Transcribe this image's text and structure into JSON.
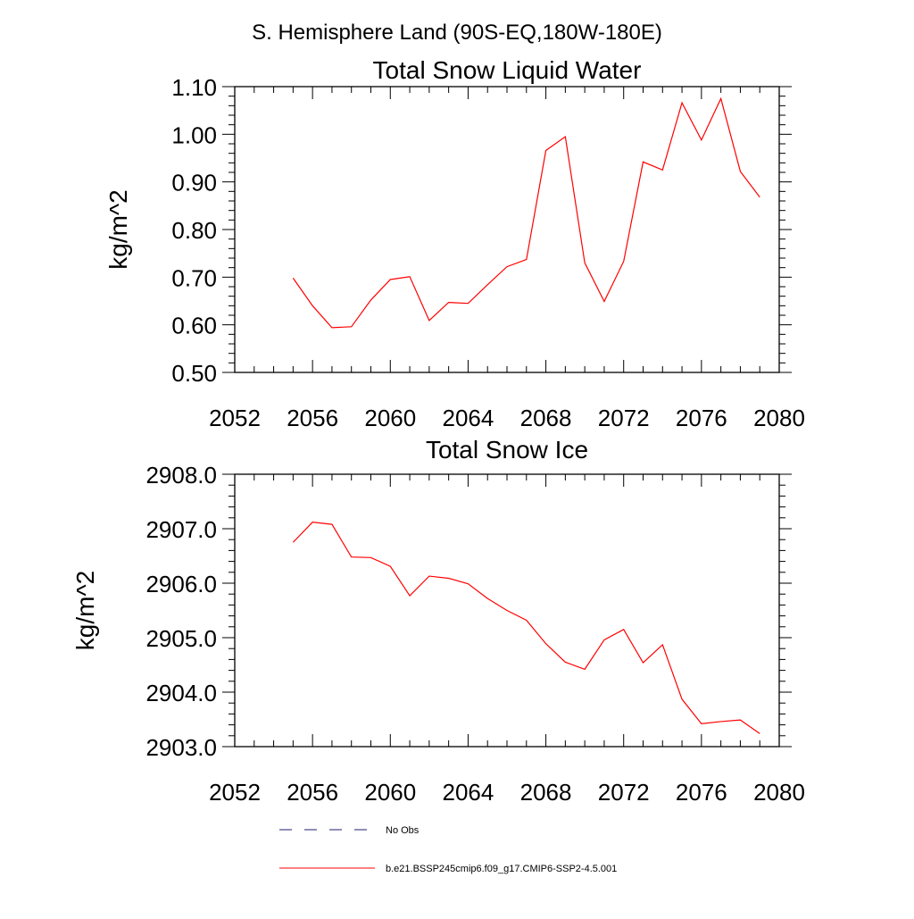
{
  "page_title": "S. Hemisphere Land (90S-EQ,180W-180E)",
  "colors": {
    "series": "#ff0000",
    "obs": "#1c1c6e",
    "axis": "#000000"
  },
  "legend": [
    {
      "name": "No Obs",
      "style": "dashed",
      "color": "#1c1c6e"
    },
    {
      "name": "b.e21.BSSP245cmip6.f09_g17.CMIP6-SSP2-4.5.001",
      "style": "solid",
      "color": "#ff0000"
    }
  ],
  "chart_data": [
    {
      "type": "line",
      "title": "Total Snow Liquid Water",
      "xlabel": "",
      "ylabel": "kg/m^2",
      "xlim": [
        2052,
        2080
      ],
      "ylim": [
        0.5,
        1.1
      ],
      "xticks": [
        2052,
        2056,
        2060,
        2064,
        2068,
        2072,
        2076,
        2080
      ],
      "xtick_labels": [
        "2052",
        "2056",
        "2060",
        "2064",
        "2068",
        "2072",
        "2076",
        "2080"
      ],
      "yticks": [
        0.5,
        0.6,
        0.7,
        0.8,
        0.9,
        1.0,
        1.1
      ],
      "ytick_labels": [
        "0.50",
        "0.60",
        "0.70",
        "0.80",
        "0.90",
        "1.00",
        "1.10"
      ],
      "grid": false,
      "series": [
        {
          "name": "b.e21.BSSP245cmip6.f09_g17.CMIP6-SSP2-4.5.001",
          "x": [
            2055,
            2056,
            2057,
            2058,
            2059,
            2060,
            2061,
            2062,
            2063,
            2064,
            2065,
            2066,
            2067,
            2068,
            2069,
            2070,
            2071,
            2072,
            2073,
            2074,
            2075,
            2076,
            2077,
            2078,
            2079
          ],
          "y": [
            0.698,
            0.64,
            0.594,
            0.596,
            0.652,
            0.695,
            0.701,
            0.609,
            0.647,
            0.645,
            0.684,
            0.722,
            0.737,
            0.966,
            0.995,
            0.73,
            0.649,
            0.733,
            0.942,
            0.925,
            1.066,
            0.988,
            1.075,
            0.922,
            0.868
          ]
        }
      ]
    },
    {
      "type": "line",
      "title": "Total Snow Ice",
      "xlabel": "",
      "ylabel": "kg/m^2",
      "xlim": [
        2052,
        2080
      ],
      "ylim": [
        2903.0,
        2908.0
      ],
      "xticks": [
        2052,
        2056,
        2060,
        2064,
        2068,
        2072,
        2076,
        2080
      ],
      "xtick_labels": [
        "2052",
        "2056",
        "2060",
        "2064",
        "2068",
        "2072",
        "2076",
        "2080"
      ],
      "yticks": [
        2903,
        2904,
        2905,
        2906,
        2907,
        2908
      ],
      "ytick_labels": [
        "2903.0",
        "2904.0",
        "2905.0",
        "2906.0",
        "2907.0",
        "2908.0"
      ],
      "grid": false,
      "series": [
        {
          "name": "b.e21.BSSP245cmip6.f09_g17.CMIP6-SSP2-4.5.001",
          "x": [
            2055,
            2056,
            2057,
            2058,
            2059,
            2060,
            2061,
            2062,
            2063,
            2064,
            2065,
            2066,
            2067,
            2068,
            2069,
            2070,
            2071,
            2072,
            2073,
            2074,
            2075,
            2076,
            2077,
            2078,
            2079
          ],
          "y": [
            2906.75,
            2907.12,
            2907.08,
            2906.48,
            2906.47,
            2906.31,
            2905.77,
            2906.13,
            2906.09,
            2905.99,
            2905.72,
            2905.5,
            2905.32,
            2904.89,
            2904.55,
            2904.42,
            2904.96,
            2905.15,
            2904.54,
            2904.87,
            2903.87,
            2903.42,
            2903.46,
            2903.49,
            2903.24
          ]
        }
      ]
    }
  ]
}
